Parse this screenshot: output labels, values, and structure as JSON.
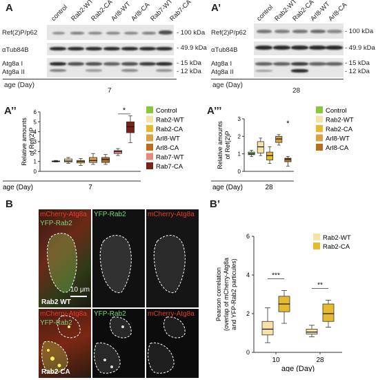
{
  "panels": {
    "A": {
      "label": "A",
      "lanes": [
        "control",
        "Rab2-WT",
        "Rab2-CA",
        "Arl8-WT",
        "Arl8-CA",
        "Rab7-WT",
        "Rab7-CA"
      ],
      "rows": [
        "Ref(2)P/p62",
        "αTub84B",
        "Atg8a I",
        "Atg8a II"
      ],
      "kda": [
        "- 100 kDa",
        "- 49.9 kDa",
        "- 15 kDa",
        "- 12 kDa"
      ],
      "age_label": "age (Day)",
      "age": "7"
    },
    "A1": {
      "label": "A’",
      "lanes": [
        "control",
        "Rab2-WT",
        "Rab2-CA",
        "Arl8-WT",
        "Arl8-CA"
      ],
      "rows": [
        "Ref(2)P/p62",
        "αTub84B",
        "Atg8a I",
        "Atg8a II"
      ],
      "kda": [
        "- 100 kDa",
        "- 49.9 kDa",
        "- 15 kDa",
        "- 12 kDa"
      ],
      "age_label": "age (Day)",
      "age": "28"
    },
    "A2": {
      "label": "A’’"
    },
    "A3": {
      "label": "A’’’"
    },
    "B": {
      "label": "B",
      "channels_top": [
        "mCherry-Atg8a",
        "YFP-Rab2",
        "YFP-Rab2",
        "mCherry-Atg8a"
      ],
      "channels_bottom": [
        "mCherry-Atg8a",
        "YFP-Rab2",
        "YFP-Rab2",
        "mCherry-Atg8a"
      ],
      "scale_bar": "10 μm",
      "row1": "Rab2 WT",
      "row2": "Rab2 CA"
    },
    "B1": {
      "label": "B’"
    }
  },
  "colors": {
    "Control": "#8cc63e",
    "Rab2-WT": "#f4e3a4",
    "Rab2-CA": "#e6b92e",
    "Arl8-WT": "#d9a24a",
    "Arl8-CA": "#b86d1f",
    "Rab7-WT": "#e58a7a",
    "Rab7-CA": "#7a2218",
    "mcherry": "#e63b2e",
    "yfp": "#7fd37f"
  },
  "chart_data": [
    {
      "type": "box",
      "id": "A2",
      "ylabel": "Relative amounts of Ref(2)P",
      "xlabel": "age (Day)",
      "x_tick": "7",
      "ylim": [
        0,
        6
      ],
      "yticks": [
        0,
        1,
        2,
        3,
        4,
        5,
        6
      ],
      "legend": [
        "Control",
        "Rab2-WT",
        "Rab2-CA",
        "Arl8-WT",
        "Arl8-CA",
        "Rab7-WT",
        "Rab7-CA"
      ],
      "legend_position": "right",
      "series": [
        {
          "name": "Control",
          "min": 0.95,
          "q1": 1.0,
          "median": 1.0,
          "q3": 1.05,
          "max": 1.1
        },
        {
          "name": "Rab2-WT",
          "min": 0.8,
          "q1": 0.95,
          "median": 1.05,
          "q3": 1.25,
          "max": 1.4
        },
        {
          "name": "Rab2-CA",
          "min": 0.6,
          "q1": 0.85,
          "median": 1.0,
          "q3": 1.1,
          "max": 1.3
        },
        {
          "name": "Arl8-WT",
          "min": 0.7,
          "q1": 0.9,
          "median": 1.1,
          "q3": 1.4,
          "max": 1.8
        },
        {
          "name": "Arl8-CA",
          "min": 0.7,
          "q1": 0.9,
          "median": 1.2,
          "q3": 1.4,
          "max": 1.7
        },
        {
          "name": "Rab7-WT",
          "min": 1.6,
          "q1": 1.8,
          "median": 2.0,
          "q3": 2.1,
          "max": 2.3
        },
        {
          "name": "Rab7-CA",
          "min": 2.9,
          "q1": 3.9,
          "median": 4.5,
          "q3": 5.0,
          "max": 5.6
        }
      ],
      "significance": {
        "between": [
          "Rab7-WT",
          "Rab7-CA"
        ],
        "label": "*"
      }
    },
    {
      "type": "box",
      "id": "A3",
      "ylabel": "Relative amounts of Ref(2)P",
      "xlabel": "age (Day)",
      "x_tick": "28",
      "ylim": [
        0,
        3
      ],
      "yticks": [
        0,
        1,
        2,
        3
      ],
      "legend": [
        "Control",
        "Rab2-WT",
        "Rab2-CA",
        "Arl8-WT",
        "Arl8-CA"
      ],
      "legend_position": "right",
      "series": [
        {
          "name": "Control",
          "min": 0.85,
          "q1": 0.95,
          "median": 1.0,
          "q3": 1.1,
          "max": 1.2
        },
        {
          "name": "Rab2-WT",
          "min": 0.9,
          "q1": 1.05,
          "median": 1.4,
          "q3": 1.7,
          "max": 1.9
        },
        {
          "name": "Rab2-CA",
          "min": 0.45,
          "q1": 0.65,
          "median": 0.9,
          "q3": 1.1,
          "max": 1.4
        },
        {
          "name": "Arl8-WT",
          "min": 1.5,
          "q1": 1.65,
          "median": 1.85,
          "q3": 2.0,
          "max": 2.1
        },
        {
          "name": "Arl8-CA",
          "min": 0.3,
          "q1": 0.55,
          "median": 0.7,
          "q3": 0.75,
          "max": 0.85
        }
      ],
      "significance": {
        "between": [
          "Arl8-WT",
          "Arl8-CA"
        ],
        "label": "*"
      }
    },
    {
      "type": "box",
      "id": "B1",
      "ylabel": "Pearson correlation (overlap of mCherry-Atg8a and YFP-Rab2 particules)",
      "xlabel": "age (Day)",
      "categories": [
        "10",
        "28"
      ],
      "ylim": [
        0,
        6
      ],
      "yticks": [
        0,
        2,
        4,
        6
      ],
      "legend": [
        "Rab2-WT",
        "Rab2-CA"
      ],
      "legend_position": "top-right",
      "series": [
        {
          "name": "Rab2-WT",
          "boxes": [
            {
              "min": 0.5,
              "q1": 0.9,
              "median": 1.2,
              "q3": 1.6,
              "max": 2.3
            },
            {
              "min": 0.8,
              "q1": 0.95,
              "median": 1.05,
              "q3": 1.2,
              "max": 1.4
            }
          ]
        },
        {
          "name": "Rab2-CA",
          "boxes": [
            {
              "min": 1.5,
              "q1": 2.1,
              "median": 2.5,
              "q3": 2.9,
              "max": 3.2
            },
            {
              "min": 1.3,
              "q1": 1.6,
              "median": 2.0,
              "q3": 2.5,
              "max": 2.7
            }
          ]
        }
      ],
      "significance": [
        {
          "category": "10",
          "label": "***"
        },
        {
          "category": "28",
          "label": "**"
        }
      ]
    }
  ]
}
